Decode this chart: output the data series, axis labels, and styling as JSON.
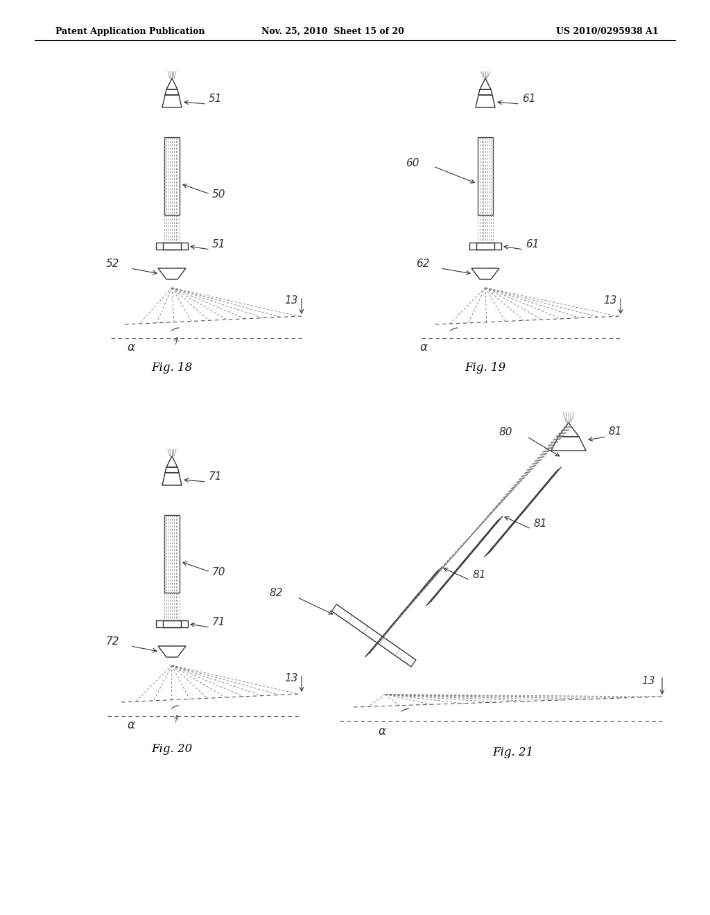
{
  "bg_color": "#ffffff",
  "header_left": "Patent Application Publication",
  "header_mid": "Nov. 25, 2010  Sheet 15 of 20",
  "header_right": "US 2010/0295938 A1",
  "fig18_label": "Fig. 18",
  "fig19_label": "Fig. 19",
  "fig20_label": "Fig. 20",
  "fig21_label": "Fig. 21",
  "gray": "#333333",
  "lgray": "#777777"
}
